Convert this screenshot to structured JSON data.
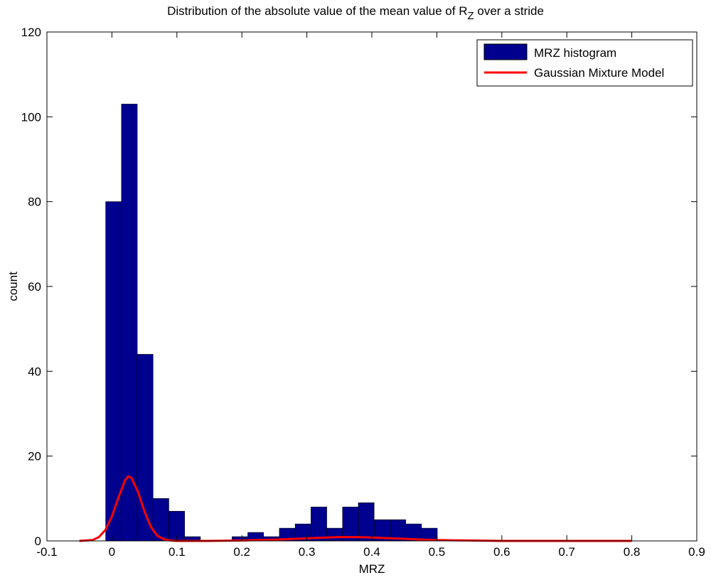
{
  "chart_data": {
    "type": "bar",
    "title_main": "Distribution of the absolute value of the mean value of R",
    "title_sub": "Z",
    "title_tail": " over a stride",
    "xlabel": "MRZ",
    "ylabel": "count",
    "xlim": [
      -0.1,
      0.9
    ],
    "ylim": [
      0,
      120
    ],
    "xticks": [
      -0.1,
      0,
      0.1,
      0.2,
      0.3,
      0.4,
      0.5,
      0.6,
      0.7,
      0.8,
      0.9
    ],
    "xtick_labels": [
      "-0.1",
      "0",
      "0.1",
      "0.2",
      "0.3",
      "0.4",
      "0.5",
      "0.6",
      "0.7",
      "0.8",
      "0.9"
    ],
    "yticks": [
      0,
      20,
      40,
      60,
      80,
      100,
      120
    ],
    "ytick_labels": [
      "0",
      "20",
      "40",
      "60",
      "80",
      "100",
      "120"
    ],
    "grid": false,
    "legend_position": "top-right",
    "series": [
      {
        "name": "MRZ histogram",
        "kind": "histogram",
        "color": "#00008f",
        "bin_edges": [
          -0.0096,
          0.0147,
          0.039,
          0.0633,
          0.0876,
          0.1119,
          0.1362,
          0.1605,
          0.1848,
          0.2091,
          0.2334,
          0.2577,
          0.282,
          0.3063,
          0.3306,
          0.3549,
          0.3792,
          0.4035,
          0.4278,
          0.4521,
          0.4764,
          0.5007
        ],
        "values": [
          80,
          103,
          44,
          10,
          7,
          1,
          0,
          0,
          1,
          2,
          1,
          3,
          4,
          8,
          3,
          8,
          9,
          5,
          5,
          4,
          3
        ]
      },
      {
        "name": "Gaussian Mixture Model",
        "kind": "line",
        "color": "#ff0000",
        "x": [
          -0.05,
          -0.03,
          -0.02,
          -0.01,
          0.0,
          0.01,
          0.02,
          0.025,
          0.03,
          0.04,
          0.05,
          0.06,
          0.07,
          0.08,
          0.09,
          0.1,
          0.12,
          0.15,
          0.2,
          0.25,
          0.3,
          0.33,
          0.35,
          0.38,
          0.4,
          0.43,
          0.45,
          0.48,
          0.5,
          0.55,
          0.6,
          0.7,
          0.8
        ],
        "y": [
          0.0,
          0.2,
          0.9,
          2.6,
          5.8,
          10.2,
          14.2,
          15.2,
          14.9,
          11.6,
          7.0,
          3.3,
          1.2,
          0.4,
          0.1,
          0.0,
          0.0,
          0.0,
          0.1,
          0.3,
          0.6,
          0.8,
          0.9,
          0.9,
          0.8,
          0.6,
          0.5,
          0.3,
          0.2,
          0.1,
          0.0,
          0.0,
          0.0
        ]
      }
    ]
  }
}
